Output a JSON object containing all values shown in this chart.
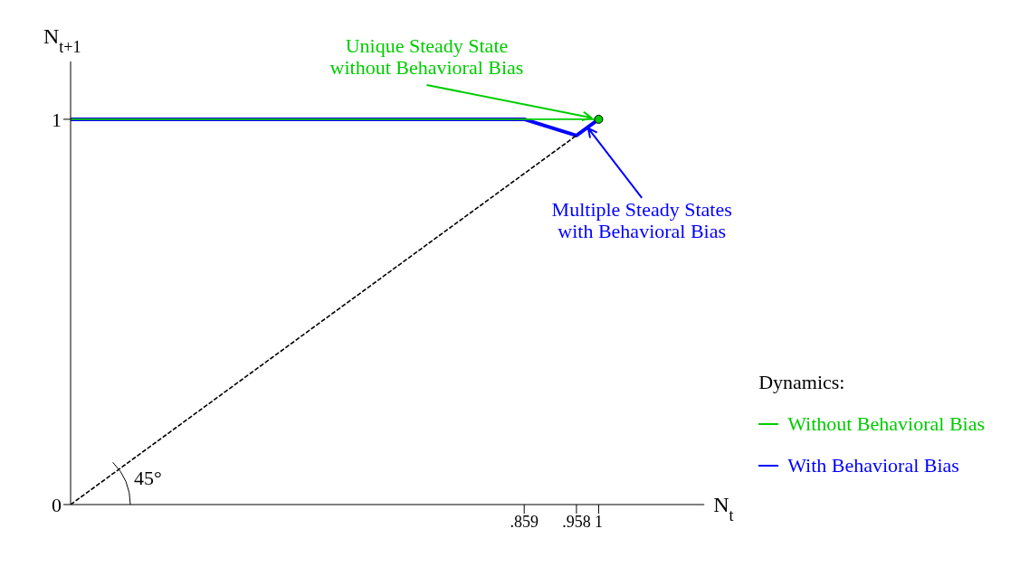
{
  "chart_data": {
    "type": "line",
    "xlabel": "N$_{t}$",
    "ylabel": "N$_{t+1}$",
    "legend_title": "Dynamics:",
    "legend": "bottom right",
    "grid": false,
    "marker": "none",
    "xlim": [
      0,
      1.2
    ],
    "ylim": [
      0,
      1.15
    ],
    "xticks": [
      {
        "value": 0.859,
        "label": ".859"
      },
      {
        "value": 0.958,
        "label": ".958"
      },
      1
    ],
    "yticks": [
      0,
      1
    ],
    "series": [
      {
        "name": "Without Behavioral Bias",
        "color": "#00cc00",
        "x": [
          0,
          1
        ],
        "values": [
          1,
          1
        ]
      },
      {
        "name": "With Behavioral Bias",
        "color": "#0000ff",
        "x": [
          0,
          0.859,
          0.958,
          1
        ],
        "values": [
          1,
          1,
          0.958,
          1
        ]
      },
      {
        "color": "#000000",
        "x": [
          0,
          0.958
        ],
        "values": [
          0,
          0.958
        ],
        "line_style": "dashed"
      },
      {
        "type": "scatter",
        "color": "#00cc00",
        "x": [
          1
        ],
        "values": [
          1
        ],
        "marker": "circle"
      }
    ],
    "annotations": [
      {
        "text": "Unique Steady State without Behavioral Bias",
        "x": 1,
        "y": 1
      },
      {
        "text": "Multiple Steady States with Behavioral Bias",
        "x": 0.979,
        "y": 0.979
      },
      "45°"
    ]
  }
}
